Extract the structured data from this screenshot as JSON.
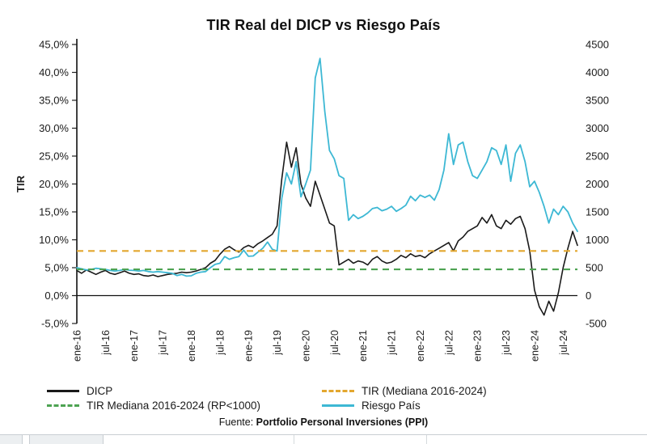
{
  "chart_data": {
    "type": "line",
    "title": "TIR Real del DICP vs Riesgo País",
    "ylabel": "TIR",
    "x_frequency": "monthly",
    "x_range": [
      "ene-16",
      "oct-24"
    ],
    "left_axis": {
      "label": "TIR",
      "min": -5,
      "max": 45,
      "unit": "%",
      "ticks": [
        "45,0%",
        "40,0%",
        "35,0%",
        "30,0%",
        "25,0%",
        "20,0%",
        "15,0%",
        "10,0%",
        "5,0%",
        "0,0%",
        "-5,0%"
      ]
    },
    "right_axis": {
      "min": -500,
      "max": 4500,
      "ticks": [
        "4500",
        "4000",
        "3500",
        "3000",
        "2500",
        "2000",
        "1500",
        "1000",
        "500",
        "0",
        "-500"
      ]
    },
    "x_ticks": [
      {
        "index": 0,
        "label": "ene-16"
      },
      {
        "index": 6,
        "label": "jul-16"
      },
      {
        "index": 12,
        "label": "ene-17"
      },
      {
        "index": 18,
        "label": "jul-17"
      },
      {
        "index": 24,
        "label": "ene-18"
      },
      {
        "index": 30,
        "label": "jul-18"
      },
      {
        "index": 36,
        "label": "ene-19"
      },
      {
        "index": 42,
        "label": "jul-19"
      },
      {
        "index": 48,
        "label": "ene-20"
      },
      {
        "index": 54,
        "label": "jul-20"
      },
      {
        "index": 60,
        "label": "ene-21"
      },
      {
        "index": 66,
        "label": "jul-21"
      },
      {
        "index": 72,
        "label": "ene-22"
      },
      {
        "index": 78,
        "label": "jul-22"
      },
      {
        "index": 84,
        "label": "ene-23"
      },
      {
        "index": 90,
        "label": "jul-23"
      },
      {
        "index": 96,
        "label": "ene-24"
      },
      {
        "index": 102,
        "label": "jul-24"
      }
    ],
    "series": [
      {
        "name": "DICP",
        "axis": "left",
        "unit": "%",
        "color": "#1a1a1a",
        "width": 1.6,
        "values": [
          4.5,
          4.0,
          4.6,
          4.2,
          3.8,
          4.2,
          4.5,
          4.0,
          3.8,
          4.1,
          4.4,
          4.0,
          3.8,
          3.9,
          3.6,
          3.5,
          3.7,
          3.4,
          3.6,
          3.8,
          3.9,
          4.0,
          4.2,
          4.1,
          4.2,
          4.4,
          4.7,
          5.0,
          5.8,
          6.3,
          7.4,
          8.3,
          8.8,
          8.2,
          7.8,
          8.6,
          9.0,
          8.6,
          9.3,
          9.8,
          10.4,
          11.0,
          12.5,
          21.0,
          27.5,
          23.0,
          26.5,
          20.0,
          17.5,
          16.0,
          20.5,
          18.0,
          15.5,
          13.0,
          12.5,
          5.5,
          6.0,
          6.5,
          5.8,
          6.2,
          6.0,
          5.5,
          6.5,
          7.0,
          6.2,
          5.8,
          6.0,
          6.5,
          7.2,
          6.8,
          7.5,
          7.0,
          7.2,
          6.8,
          7.5,
          8.0,
          8.5,
          9.0,
          9.5,
          8.0,
          9.8,
          10.5,
          11.5,
          12.0,
          12.5,
          14.0,
          13.0,
          14.5,
          12.5,
          12.0,
          13.5,
          12.8,
          13.8,
          14.2,
          12.0,
          8.0,
          1.0,
          -2.0,
          -3.5,
          -1.0,
          -2.8,
          0.5,
          5.0,
          8.5,
          11.5,
          9.0
        ]
      },
      {
        "name": "Riesgo País",
        "axis": "right",
        "unit": "bps",
        "color": "#3db8d4",
        "width": 1.8,
        "values": [
          500,
          480,
          460,
          470,
          490,
          480,
          470,
          450,
          440,
          450,
          470,
          455,
          450,
          440,
          450,
          430,
          420,
          430,
          420,
          410,
          400,
          360,
          380,
          350,
          355,
          400,
          420,
          430,
          500,
          560,
          580,
          700,
          650,
          680,
          700,
          815,
          705,
          710,
          780,
          850,
          960,
          830,
          800,
          1750,
          2200,
          2000,
          2400,
          1770,
          2000,
          2250,
          3900,
          4250,
          3300,
          2600,
          2450,
          2150,
          2100,
          1350,
          1450,
          1380,
          1420,
          1480,
          1560,
          1580,
          1520,
          1550,
          1600,
          1510,
          1560,
          1620,
          1780,
          1700,
          1800,
          1760,
          1800,
          1710,
          1900,
          2250,
          2900,
          2350,
          2700,
          2750,
          2400,
          2150,
          2100,
          2250,
          2400,
          2650,
          2600,
          2350,
          2700,
          2050,
          2550,
          2700,
          2400,
          1950,
          2050,
          1850,
          1600,
          1300,
          1550,
          1450,
          1600,
          1500,
          1300,
          1150
        ]
      }
    ],
    "reference_lines": [
      {
        "label": "TIR (Mediana 2016-2024)",
        "axis": "left",
        "value": 8.0,
        "color": "#e3a72f",
        "style": "dashed"
      },
      {
        "label": "TIR Mediana 2016-2024 (RP<1000)",
        "axis": "left",
        "value": 4.7,
        "color": "#4da352",
        "style": "dashed"
      }
    ],
    "legend": [
      {
        "label": "DICP",
        "color": "#1a1a1a",
        "dashed": false,
        "icon": "dicp-line-swatch"
      },
      {
        "label": "TIR (Mediana 2016-2024)",
        "color": "#e3a72f",
        "dashed": true,
        "icon": "tir-mediana-swatch"
      },
      {
        "label": "TIR Mediana 2016-2024 (RP<1000)",
        "color": "#4da352",
        "dashed": true,
        "icon": "tir-mediana-rp-swatch"
      },
      {
        "label": "Riesgo País",
        "color": "#3db8d4",
        "dashed": false,
        "icon": "riesgo-pais-swatch"
      }
    ],
    "legend_position": "bottom",
    "grid": false,
    "source": {
      "prefix": "Fuente: ",
      "bold": "Portfolio Personal Inversiones (PPI)"
    }
  }
}
